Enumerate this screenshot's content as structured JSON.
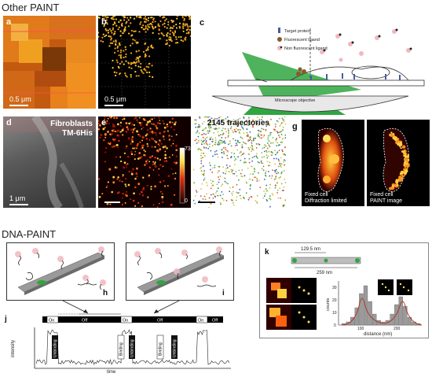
{
  "sections": {
    "other_paint": "Other PAINT",
    "dna_paint": "DNA-PAINT"
  },
  "panels": {
    "a": {
      "label": "a",
      "scale": "0.5 μm"
    },
    "b": {
      "label": "b",
      "scale": "0.5 μm"
    },
    "c": {
      "label": "c",
      "legend": [
        "Target protein",
        "Fluorescent ligand",
        "Non fluorescent ligand"
      ],
      "objective": "Microscope objective"
    },
    "d": {
      "label": "d",
      "line1": "Fibroblasts",
      "line2": "TM-6His",
      "scale": "1 μm"
    },
    "e": {
      "label": "e",
      "cbar_max": "73",
      "cbar_min": "0"
    },
    "f": {
      "label": "f",
      "text": "2145 trajectories"
    },
    "g": {
      "label": "g",
      "left_caption": [
        "Fixed cell",
        "Diffraction limited"
      ],
      "right_caption": [
        "Fixed cell",
        "PAINT image"
      ]
    },
    "h": {
      "label": "h"
    },
    "i": {
      "label": "i"
    },
    "j": {
      "label": "j",
      "states": [
        "On",
        "Off",
        "On",
        "Off",
        "On",
        "Off"
      ],
      "ylabel": "intensity",
      "xlabel": "time",
      "events": [
        "Unbinding",
        "Binding",
        "Unbinding",
        "Binding",
        "Unbinding"
      ]
    },
    "k": {
      "label": "k",
      "dist1": "129.5 nm",
      "dist2": "259 nm",
      "ylabel": "counts",
      "xlabel": "distance (nm)",
      "yticks": [
        "0",
        "10",
        "20",
        "30"
      ],
      "xticks": [
        "100",
        "200"
      ]
    }
  },
  "colors": {
    "panel_c_green": "#2fa640",
    "colorbar_top": "#ffffff",
    "colorbar_bottom": "#1a0000"
  }
}
